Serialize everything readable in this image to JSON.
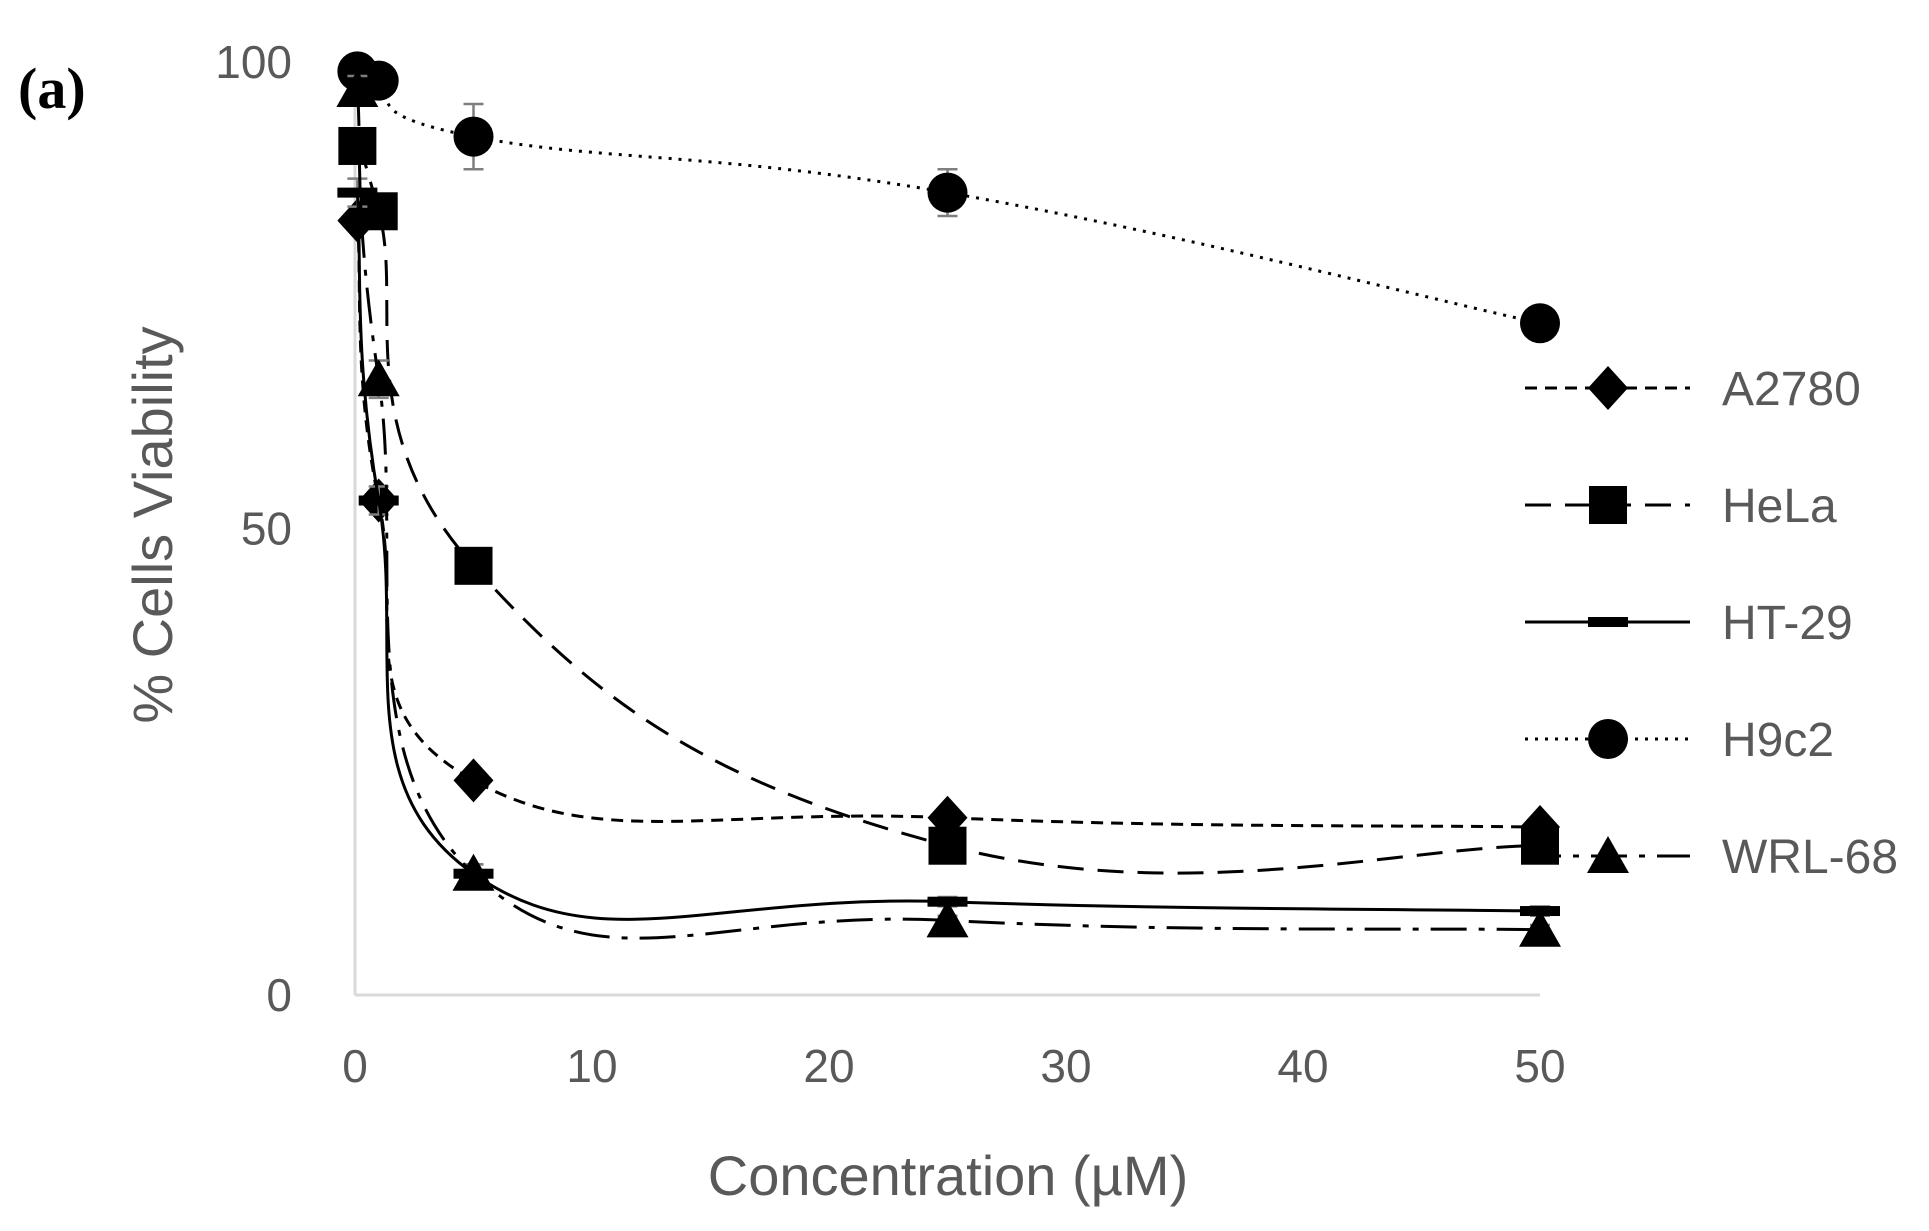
{
  "panel_label": "(a)",
  "chart_data": {
    "type": "scatter",
    "title": "",
    "xlabel": "Concentration (µM)",
    "ylabel": "% Cells Viability",
    "xlim": [
      0,
      50
    ],
    "ylim": [
      0,
      100
    ],
    "xticks": [
      0,
      10,
      20,
      30,
      40,
      50
    ],
    "yticks": [
      0,
      50,
      100
    ],
    "grid": false,
    "legend_position": "right",
    "x": [
      0.1,
      1,
      5,
      25,
      50
    ],
    "series": [
      {
        "name": "A2780",
        "marker": "diamond",
        "line": "short-dash",
        "values": [
          83,
          53,
          23,
          19,
          18
        ],
        "errors": [
          1,
          1,
          1,
          1,
          1
        ]
      },
      {
        "name": "HeLa",
        "marker": "square",
        "line": "long-dash",
        "values": [
          91,
          84,
          46,
          16,
          16
        ],
        "errors": [
          1.5,
          1,
          1,
          1,
          1
        ]
      },
      {
        "name": "HT-29",
        "marker": "dash",
        "line": "solid",
        "values": [
          86,
          53,
          13,
          10,
          9
        ],
        "errors": [
          1.5,
          1.5,
          1,
          0.5,
          0.5
        ]
      },
      {
        "name": "H9c2",
        "marker": "circle",
        "line": "dotted",
        "values": [
          99,
          98,
          92,
          86,
          72
        ],
        "errors": [
          1,
          1.5,
          3.5,
          2.5,
          1
        ]
      },
      {
        "name": "WRL-68",
        "marker": "triangle",
        "line": "long-dash-dot",
        "values": [
          97,
          66,
          13,
          8,
          7
        ],
        "errors": [
          1.5,
          2,
          1,
          0.5,
          0.5
        ]
      }
    ],
    "colors": {
      "series": "#000000",
      "axis": "#d9d9d9",
      "text": "#595959"
    }
  }
}
